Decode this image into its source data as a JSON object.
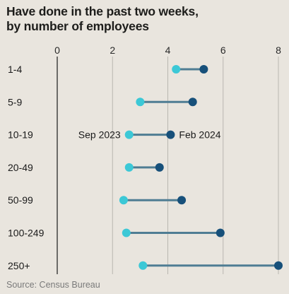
{
  "title_line1": "Have done in the past two weeks,",
  "title_line2": "by number of employees",
  "source": "Source: Census Bureau",
  "colors": {
    "sep_2023": "#3cc8d6",
    "feb_2024": "#17507a",
    "connector": "#4f7d93",
    "grid": "#b9b6b0",
    "axis": "#1a1a1a"
  },
  "chart_data": {
    "type": "dumbbell",
    "title": "Have done in the past two weeks, by number of employees",
    "xlim": [
      0,
      8
    ],
    "xticks": [
      "0",
      "2",
      "4",
      "6",
      "8"
    ],
    "grid": true,
    "categories": [
      "1-4",
      "5-9",
      "10-19",
      "20-49",
      "50-99",
      "100-249",
      "250+"
    ],
    "series": [
      {
        "name": "Sep 2023",
        "values": [
          4.3,
          3.0,
          2.6,
          2.6,
          2.4,
          2.5,
          3.1
        ]
      },
      {
        "name": "Feb 2024",
        "values": [
          5.3,
          4.9,
          4.1,
          3.7,
          4.5,
          5.9,
          8.0
        ]
      }
    ],
    "annotation_row": "10-19"
  }
}
